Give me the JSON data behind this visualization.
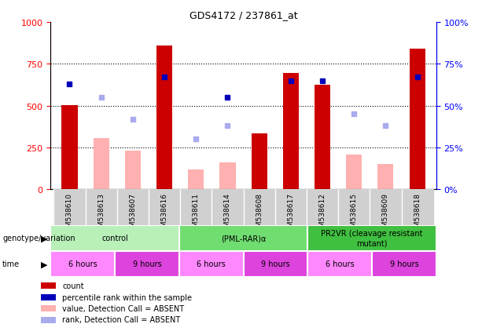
{
  "title": "GDS4172 / 237861_at",
  "samples": [
    "GSM538610",
    "GSM538613",
    "GSM538607",
    "GSM538616",
    "GSM538611",
    "GSM538614",
    "GSM538608",
    "GSM538617",
    "GSM538612",
    "GSM538615",
    "GSM538609",
    "GSM538618"
  ],
  "count_values": [
    505,
    null,
    null,
    860,
    null,
    null,
    335,
    695,
    625,
    null,
    null,
    840
  ],
  "absent_value": [
    null,
    305,
    230,
    null,
    120,
    160,
    null,
    null,
    null,
    205,
    150,
    null
  ],
  "percentile_rank": [
    63,
    null,
    null,
    67,
    null,
    55,
    null,
    65,
    65,
    null,
    null,
    67
  ],
  "absent_rank": [
    null,
    55,
    42,
    null,
    30,
    38,
    null,
    null,
    null,
    45,
    38,
    null
  ],
  "groups": [
    {
      "label": "control",
      "start": 0,
      "end": 4,
      "color": "#b8f0b8"
    },
    {
      "label": "(PML-RAR)α",
      "start": 4,
      "end": 8,
      "color": "#70dd70"
    },
    {
      "label": "PR2VR (cleavage resistant\nmutant)",
      "start": 8,
      "end": 12,
      "color": "#40c040"
    }
  ],
  "time_groups": [
    {
      "label": "6 hours",
      "start": 0,
      "end": 2,
      "color": "#ff88ff"
    },
    {
      "label": "9 hours",
      "start": 2,
      "end": 4,
      "color": "#dd44dd"
    },
    {
      "label": "6 hours",
      "start": 4,
      "end": 6,
      "color": "#ff88ff"
    },
    {
      "label": "9 hours",
      "start": 6,
      "end": 8,
      "color": "#dd44dd"
    },
    {
      "label": "6 hours",
      "start": 8,
      "end": 10,
      "color": "#ff88ff"
    },
    {
      "label": "9 hours",
      "start": 10,
      "end": 12,
      "color": "#dd44dd"
    }
  ],
  "ylim": [
    0,
    1000
  ],
  "bar_color_count": "#cc0000",
  "bar_color_absent": "#ffb0b0",
  "dot_color_present": "#0000bb",
  "dot_color_absent": "#aaaaee",
  "bar_width": 0.5,
  "genotype_label": "genotype/variation",
  "time_label": "time",
  "legend_items": [
    {
      "color": "#cc0000",
      "label": "count"
    },
    {
      "color": "#0000bb",
      "label": "percentile rank within the sample"
    },
    {
      "color": "#ffb0b0",
      "label": "value, Detection Call = ABSENT"
    },
    {
      "color": "#aaaaee",
      "label": "rank, Detection Call = ABSENT"
    }
  ]
}
